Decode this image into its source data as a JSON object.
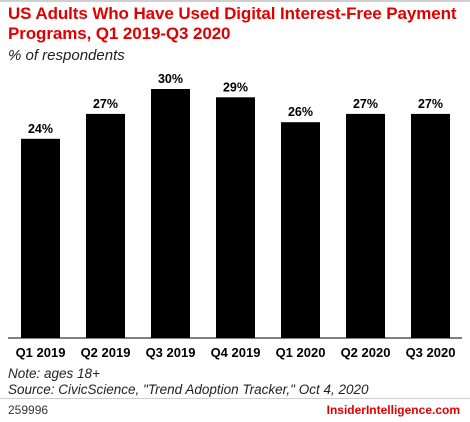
{
  "header": {
    "title": "US Adults Who Have Used Digital Interest-Free Payment Programs, Q1 2019-Q3 2020",
    "subtitle": "% of respondents"
  },
  "footer": {
    "note": "Note: ages 18+",
    "source": "Source: CivicScience, \"Trend Adoption Tracker,\" Oct 4, 2020",
    "chart_id": "259996",
    "brand": "InsiderIntelligence.com"
  },
  "colors": {
    "title": "#e10000",
    "bar": "#000000",
    "brand": "#e10000"
  },
  "chart_data": {
    "type": "bar",
    "title": "US Adults Who Have Used Digital Interest-Free Payment Programs, Q1 2019-Q3 2020",
    "subtitle": "% of respondents",
    "xlabel": "",
    "ylabel": "",
    "categories": [
      "Q1 2019",
      "Q2 2019",
      "Q3 2019",
      "Q4 2019",
      "Q1 2020",
      "Q2 2020",
      "Q3 2020"
    ],
    "values": [
      24,
      27,
      30,
      29,
      26,
      27,
      27
    ],
    "data_labels": [
      "24%",
      "27%",
      "30%",
      "29%",
      "26%",
      "27%",
      "27%"
    ],
    "ylim": [
      0,
      30
    ],
    "grid": false,
    "legend": "none"
  }
}
